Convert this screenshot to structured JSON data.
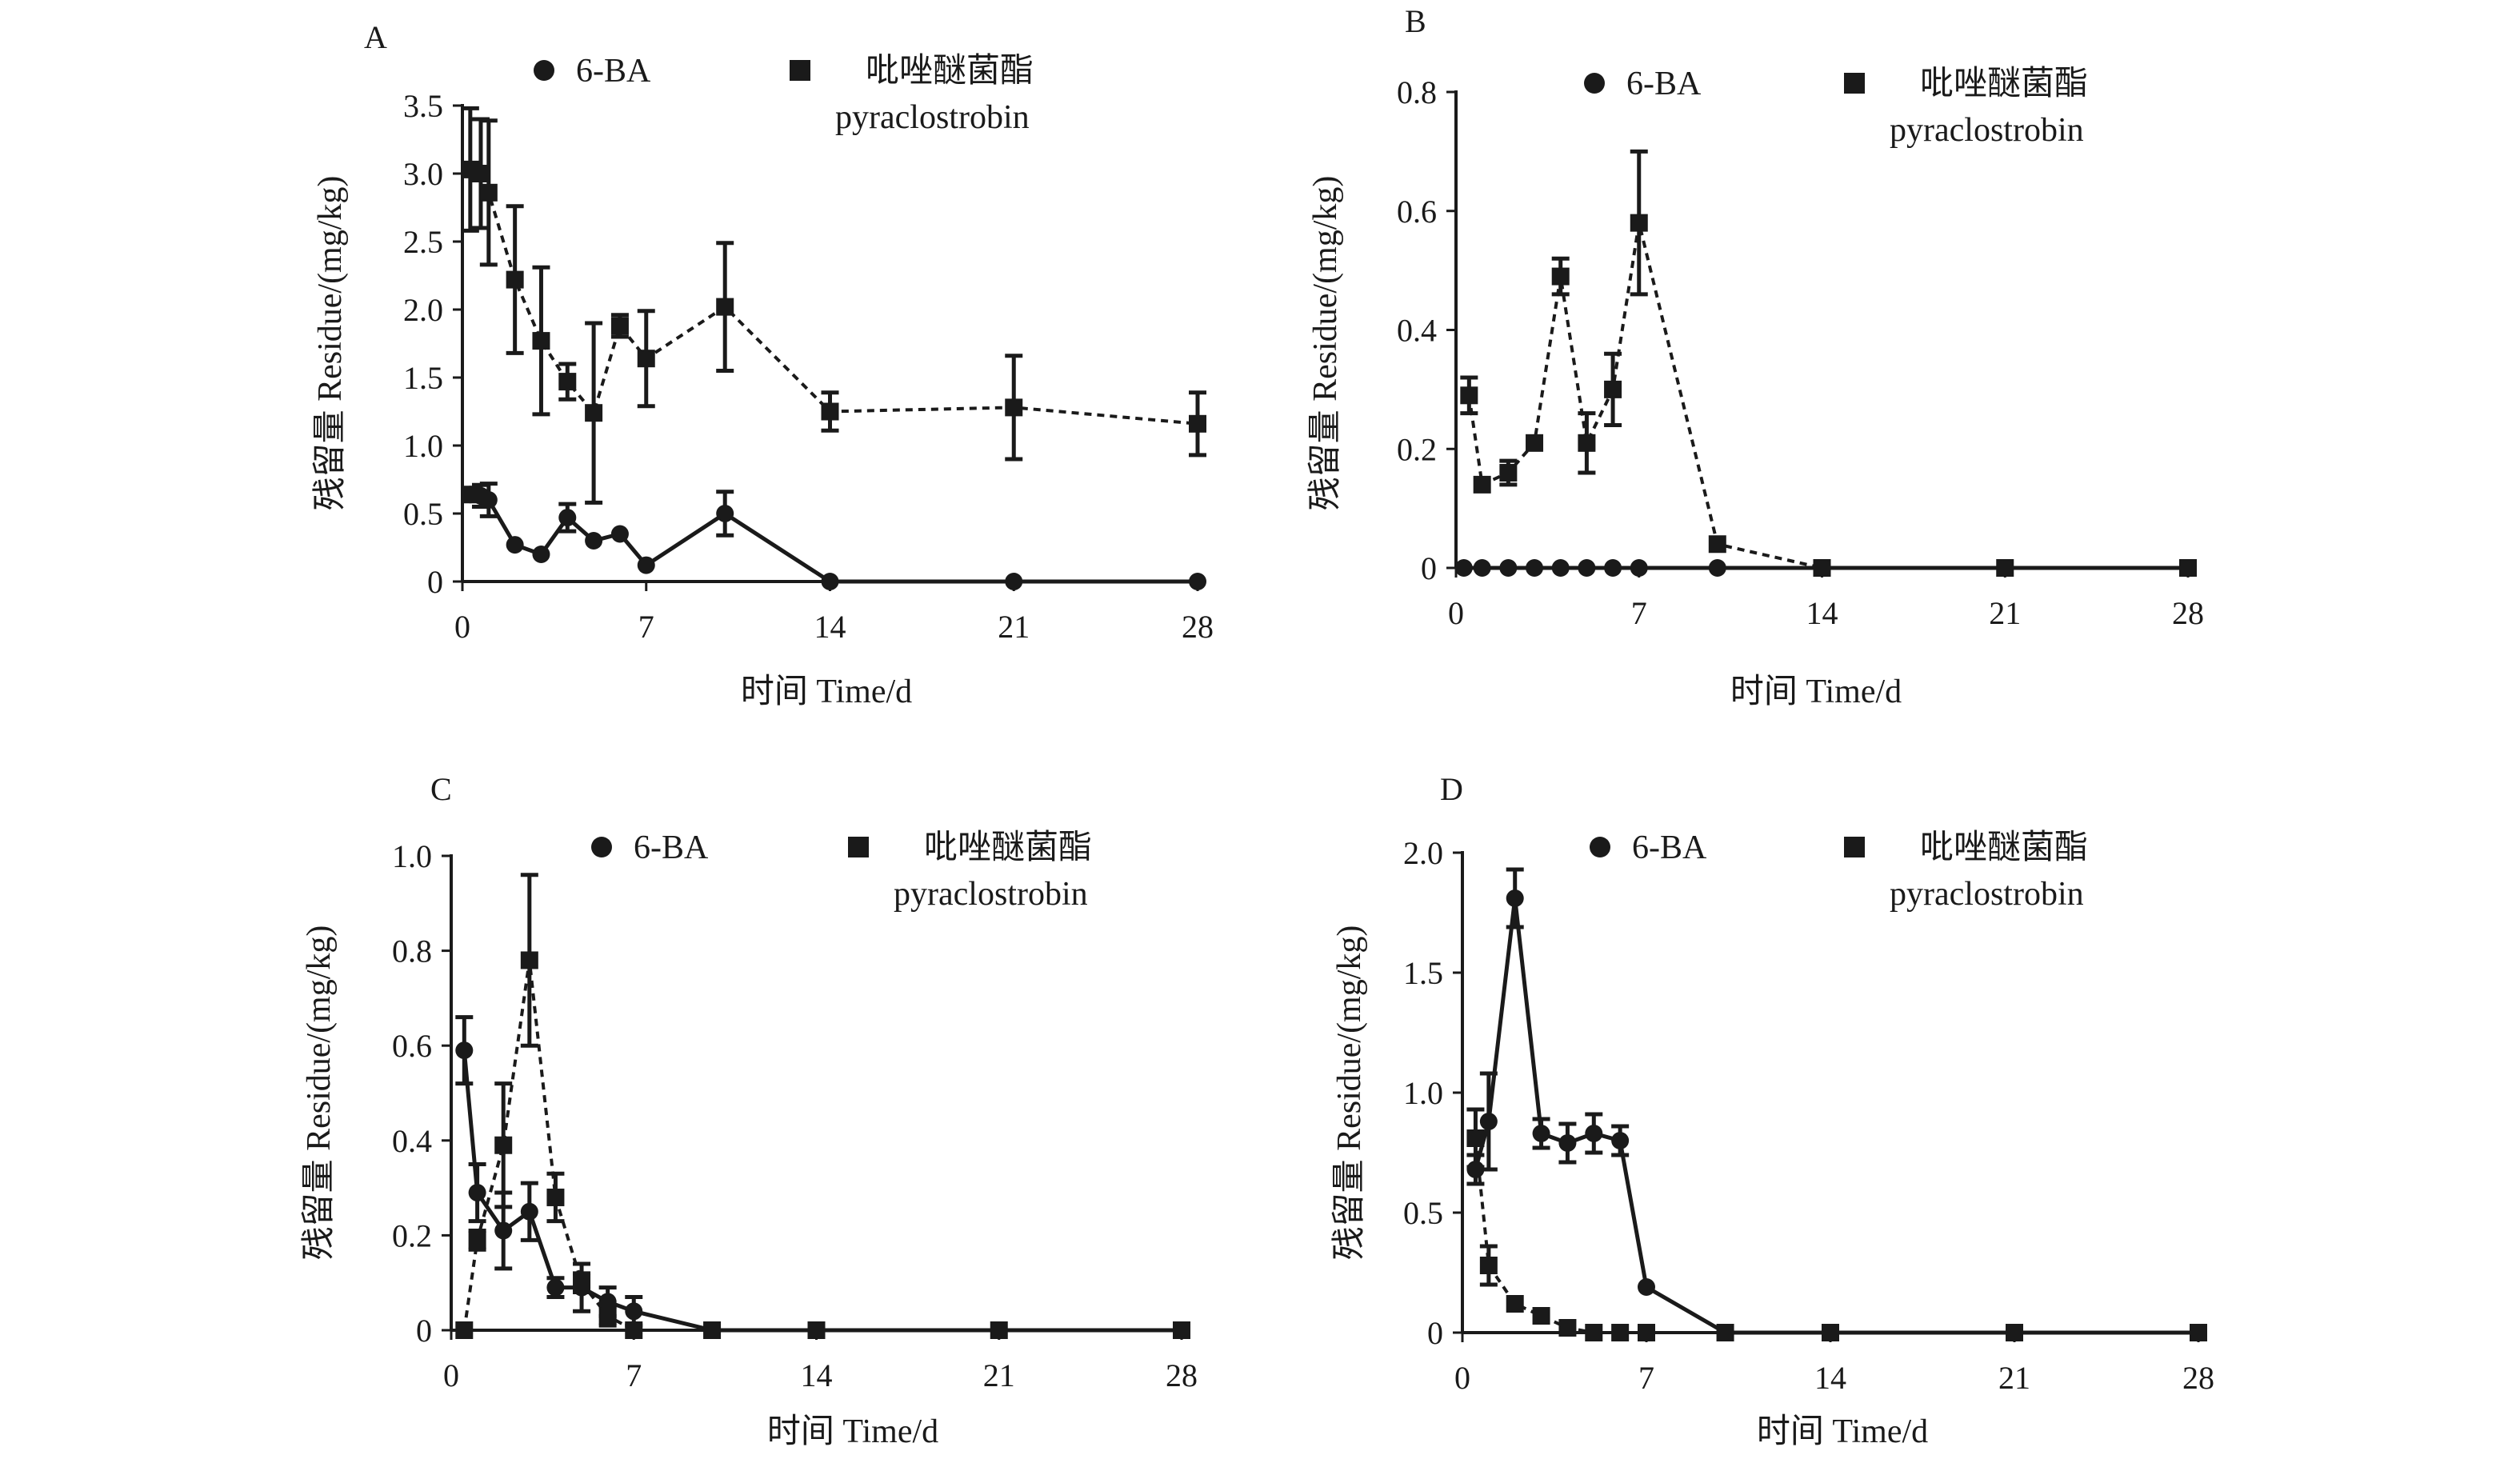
{
  "legend": {
    "series_a": "6-BA",
    "series_b_line1": "吡唑醚菌酯",
    "series_b_line2": "pyraclostrobin"
  },
  "axis_titles": {
    "x": "时间 Time/d",
    "y": "残留量 Residue/(mg/kg)"
  },
  "chart_data": [
    {
      "type": "line",
      "panel": "A",
      "xlim": [
        0,
        28
      ],
      "ylim": [
        0,
        3.5
      ],
      "xticks": [
        0,
        7,
        14,
        21,
        28
      ],
      "yticks": [
        0,
        0.5,
        1.0,
        1.5,
        2.0,
        2.5,
        3.0,
        3.5
      ],
      "ytick_labels": [
        "0",
        "0.5",
        "1.0",
        "1.5",
        "2.0",
        "2.5",
        "3.0",
        "3.5"
      ],
      "series": [
        {
          "name": "6-BA",
          "marker": "circle",
          "line": "solid",
          "x": [
            0.3,
            0.7,
            1,
            2,
            3,
            4,
            5,
            6,
            7,
            10,
            14,
            21,
            28
          ],
          "y": [
            0.64,
            0.63,
            0.6,
            0.27,
            0.2,
            0.47,
            0.3,
            0.35,
            0.12,
            0.5,
            0,
            0,
            0
          ],
          "err": [
            0.05,
            0.08,
            0.12,
            0,
            0,
            0.1,
            0,
            0,
            0,
            0.16,
            0,
            0,
            0
          ]
        },
        {
          "name": "吡唑醚菌酯 pyraclostrobin",
          "marker": "square",
          "line": "dashed",
          "x": [
            0.3,
            0.7,
            1,
            2,
            3,
            4,
            5,
            6,
            7,
            10,
            14,
            21,
            28
          ],
          "y": [
            3.03,
            3.0,
            2.86,
            2.22,
            1.77,
            1.47,
            1.24,
            1.88,
            1.64,
            2.02,
            1.25,
            1.28,
            1.16
          ],
          "err": [
            0.45,
            0.4,
            0.53,
            0.54,
            0.54,
            0.13,
            0.66,
            0.08,
            0.35,
            0.47,
            0.14,
            0.38,
            0.23
          ]
        }
      ]
    },
    {
      "type": "line",
      "panel": "B",
      "xlim": [
        0,
        28
      ],
      "ylim": [
        0,
        0.8
      ],
      "xticks": [
        0,
        7,
        14,
        21,
        28
      ],
      "yticks": [
        0,
        0.2,
        0.4,
        0.6,
        0.8
      ],
      "ytick_labels": [
        "0",
        "0.2",
        "0.4",
        "0.6",
        "0.8"
      ],
      "series": [
        {
          "name": "6-BA",
          "marker": "circle",
          "line": "solid",
          "x": [
            0.3,
            1,
            2,
            3,
            4,
            5,
            6,
            7,
            10,
            14,
            21,
            28
          ],
          "y": [
            0,
            0,
            0,
            0,
            0,
            0,
            0,
            0,
            0,
            0,
            0,
            0
          ],
          "err": [
            0,
            0,
            0,
            0,
            0,
            0,
            0,
            0,
            0,
            0,
            0,
            0
          ]
        },
        {
          "name": "吡唑醚菌酯 pyraclostrobin",
          "marker": "square",
          "line": "dashed",
          "x": [
            0.5,
            1,
            2,
            3,
            4,
            5,
            6,
            7,
            10,
            14,
            21,
            28
          ],
          "y": [
            0.29,
            0.14,
            0.16,
            0.21,
            0.49,
            0.21,
            0.3,
            0.58,
            0.04,
            0,
            0,
            0
          ],
          "err": [
            0.03,
            0,
            0.02,
            0,
            0.03,
            0.05,
            0.06,
            0.12,
            0,
            0,
            0,
            0
          ]
        }
      ]
    },
    {
      "type": "line",
      "panel": "C",
      "xlim": [
        0,
        28
      ],
      "ylim": [
        0,
        1.0
      ],
      "xticks": [
        0,
        7,
        14,
        21,
        28
      ],
      "yticks": [
        0,
        0.2,
        0.4,
        0.6,
        0.8,
        1.0
      ],
      "ytick_labels": [
        "0",
        "0.2",
        "0.4",
        "0.6",
        "0.8",
        "1.0"
      ],
      "series": [
        {
          "name": "6-BA",
          "marker": "circle",
          "line": "solid",
          "x": [
            0.5,
            1,
            2,
            3,
            4,
            5,
            6,
            7,
            10,
            14,
            21,
            28
          ],
          "y": [
            0.59,
            0.29,
            0.21,
            0.25,
            0.09,
            0.09,
            0.06,
            0.04,
            0,
            0,
            0,
            0
          ],
          "err": [
            0.07,
            0.06,
            0.08,
            0.06,
            0.02,
            0.05,
            0.03,
            0.03,
            0,
            0,
            0,
            0
          ]
        },
        {
          "name": "吡唑醚菌酯 pyraclostrobin",
          "marker": "square",
          "line": "dashed",
          "x": [
            0.5,
            1,
            2,
            3,
            4,
            5,
            6,
            7,
            10,
            14,
            21,
            28
          ],
          "y": [
            0,
            0.19,
            0.39,
            0.78,
            0.28,
            0.1,
            0.03,
            0,
            0,
            0,
            0,
            0
          ],
          "err": [
            0,
            0.02,
            0.13,
            0.18,
            0.05,
            0.02,
            0.02,
            0,
            0,
            0,
            0,
            0
          ]
        }
      ]
    },
    {
      "type": "line",
      "panel": "D",
      "xlim": [
        0,
        28
      ],
      "ylim": [
        0,
        2.0
      ],
      "xticks": [
        0,
        7,
        14,
        21,
        28
      ],
      "yticks": [
        0,
        0.5,
        1.0,
        1.5,
        2.0
      ],
      "ytick_labels": [
        "0",
        "0.5",
        "1.0",
        "1.5",
        "2.0"
      ],
      "series": [
        {
          "name": "6-BA",
          "marker": "circle",
          "line": "solid",
          "x": [
            0.5,
            1,
            2,
            3,
            4,
            5,
            6,
            7,
            10,
            14,
            21,
            28
          ],
          "y": [
            0.68,
            0.88,
            1.81,
            0.83,
            0.79,
            0.83,
            0.8,
            0.19,
            0,
            0,
            0,
            0
          ],
          "err": [
            0.06,
            0.2,
            0.12,
            0.06,
            0.08,
            0.08,
            0.06,
            0,
            0,
            0,
            0,
            0
          ]
        },
        {
          "name": "吡唑醚菌酯 pyraclostrobin",
          "marker": "square",
          "line": "dashed",
          "x": [
            0.5,
            1,
            2,
            3,
            4,
            5,
            6,
            7,
            10,
            14,
            21,
            28
          ],
          "y": [
            0.81,
            0.28,
            0.12,
            0.07,
            0.02,
            0,
            0,
            0,
            0,
            0,
            0,
            0
          ],
          "err": [
            0.12,
            0.08,
            0,
            0,
            0,
            0,
            0,
            0,
            0,
            0,
            0,
            0
          ]
        }
      ]
    }
  ]
}
